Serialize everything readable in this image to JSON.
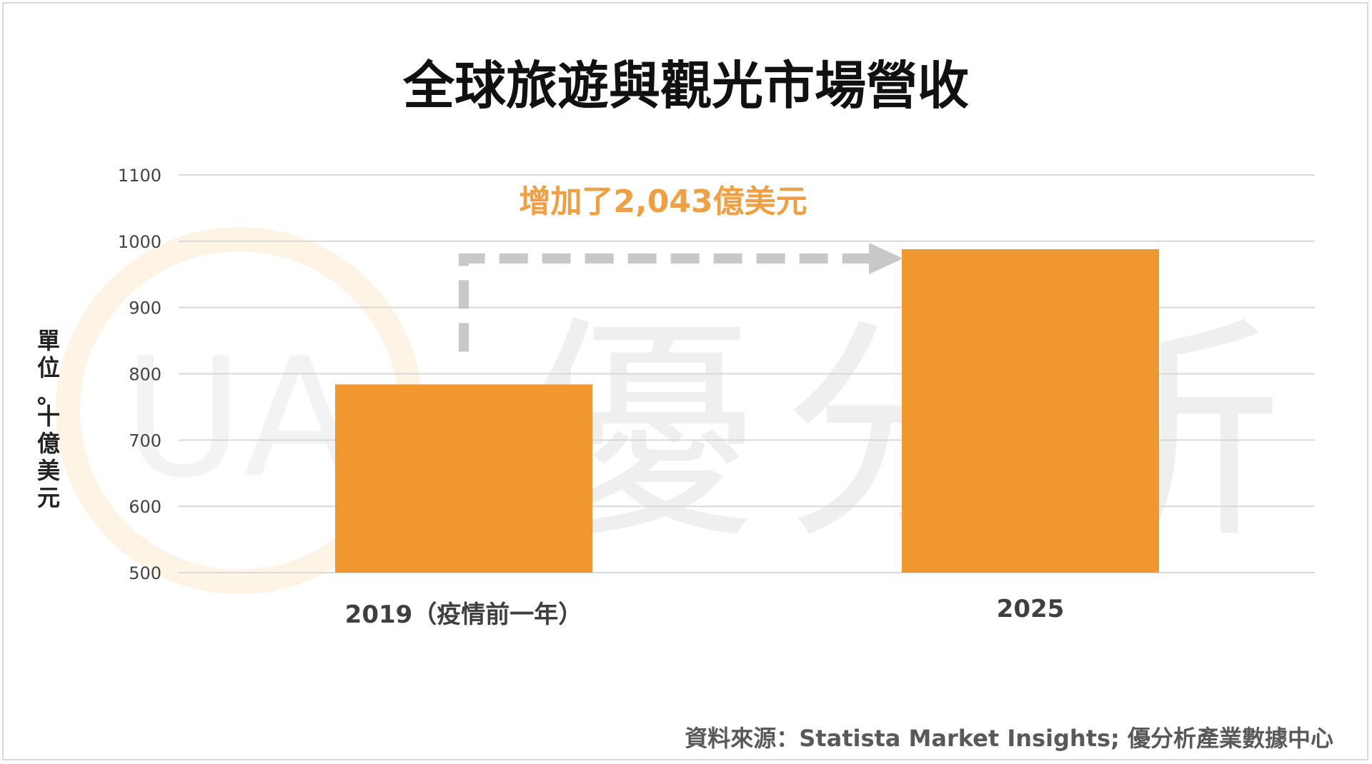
{
  "colors": {
    "bar": "#f0972f",
    "grid": "#d9d9d9",
    "arrow": "#c8c8c8",
    "annotation": "#f0a044"
  },
  "watermark": {
    "text": "優分析",
    "logo_letters": "UA"
  },
  "chart_data": {
    "type": "bar",
    "title": "全球旅遊與觀光市場營收",
    "ylabel": "單位：十億美元",
    "xlabel": "",
    "categories": [
      "2019（疫情前一年）",
      "2025"
    ],
    "values": [
      784,
      988
    ],
    "ylim": [
      500,
      1100
    ],
    "yticks": [
      500,
      600,
      700,
      800,
      900,
      1000,
      1100
    ],
    "grid": true,
    "legend": "none",
    "annotation": "增加了2,043億美元",
    "source": "資料來源：Statista Market Insights; 優分析產業數據中心"
  }
}
